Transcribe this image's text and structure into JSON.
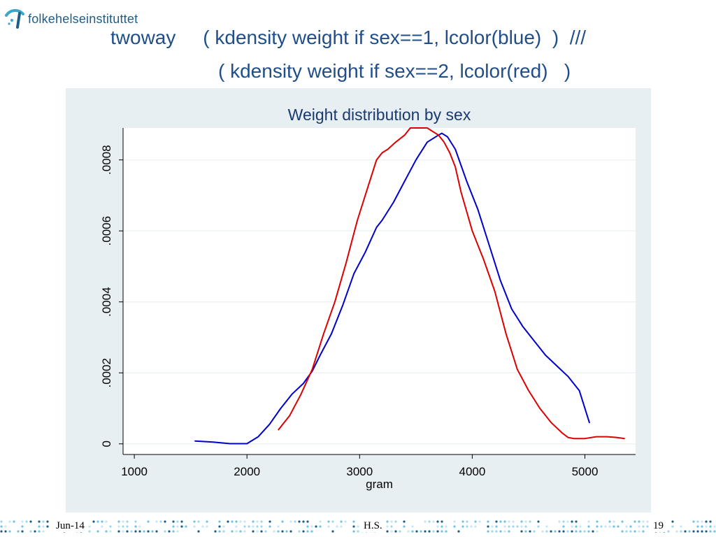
{
  "logo": {
    "text": "folkehelseinstituttet",
    "icon": "fhi-logo-icon"
  },
  "title": {
    "line1": "twoway     ( kdensity weight if sex==1, lcolor(blue)  )  ///",
    "line2": "( kdensity weight if sex==2, lcolor(red)   )"
  },
  "chart_data": {
    "type": "line",
    "title": "Weight distribution by sex",
    "xlabel": "gram",
    "ylabel": "",
    "xlim": [
      900,
      5450
    ],
    "ylim": [
      -3e-05,
      0.00089
    ],
    "x_ticks": [
      1000,
      2000,
      3000,
      4000,
      5000
    ],
    "y_ticks": [
      0,
      0.0002,
      0.0004,
      0.0006,
      0.0008
    ],
    "y_tick_labels": [
      "0",
      ".0002",
      ".0004",
      ".0006",
      ".0008"
    ],
    "grid": true,
    "legend": "none",
    "series": [
      {
        "color": "#0000cc",
        "x": [
          1540,
          1700,
          1850,
          2000,
          2100,
          2200,
          2300,
          2400,
          2500,
          2580,
          2650,
          2750,
          2850,
          2950,
          3050,
          3150,
          3200,
          3300,
          3400,
          3500,
          3600,
          3700,
          3730,
          3780,
          3850,
          3950,
          4050,
          4150,
          4250,
          4350,
          4450,
          4550,
          4650,
          4750,
          4850,
          4950,
          5040
        ],
        "y": [
          8e-06,
          5e-06,
          5e-07,
          5e-07,
          2e-05,
          5.5e-05,
          0.0001,
          0.00014,
          0.00017,
          0.000205,
          0.00025,
          0.00031,
          0.00039,
          0.00048,
          0.00054,
          0.00061,
          0.00063,
          0.00068,
          0.00074,
          0.0008,
          0.00085,
          0.00087,
          0.000875,
          0.000865,
          0.00083,
          0.00074,
          0.00066,
          0.00056,
          0.00046,
          0.00038,
          0.00033,
          0.00029,
          0.00025,
          0.00022,
          0.00019,
          0.00015,
          6e-05
        ]
      },
      {
        "color": "#dd0000",
        "x": [
          2280,
          2380,
          2480,
          2580,
          2680,
          2780,
          2880,
          2980,
          3080,
          3150,
          3200,
          3250,
          3320,
          3400,
          3450,
          3500,
          3550,
          3600,
          3650,
          3700,
          3750,
          3800,
          3850,
          3900,
          4000,
          4100,
          4200,
          4300,
          4400,
          4500,
          4600,
          4700,
          4800,
          4850,
          4900,
          5000,
          5100,
          5200,
          5280,
          5350
        ],
        "y": [
          4e-05,
          8e-05,
          0.00014,
          0.00021,
          0.00031,
          0.0004,
          0.00051,
          0.00063,
          0.00073,
          0.0008,
          0.00082,
          0.00083,
          0.00085,
          0.00087,
          0.00089,
          0.00089,
          0.00089,
          0.00089,
          0.00088,
          0.00087,
          0.00085,
          0.00082,
          0.00078,
          0.00071,
          0.0006,
          0.00052,
          0.00043,
          0.00031,
          0.00021,
          0.00015,
          0.0001,
          6e-05,
          3e-05,
          1.8e-05,
          1.5e-05,
          1.5e-05,
          2e-05,
          2e-05,
          1.8e-05,
          1.5e-05
        ]
      }
    ]
  },
  "footer": {
    "date": "Jun-14",
    "author": "H.S.",
    "page": "19"
  }
}
